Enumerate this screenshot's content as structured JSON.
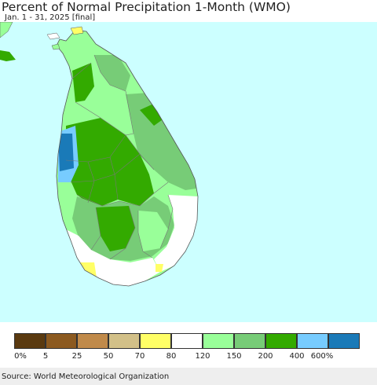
{
  "header": {
    "title": "Percent of Normal Precipitation 1-Month (WMO)",
    "subtitle": "Jan. 1 - 31, 2025 [final]"
  },
  "map": {
    "ocean_color": "#ccffff",
    "region": "Sri Lanka",
    "category_colors": {
      "0-5": "#5a3a10",
      "5-25": "#8c5a20",
      "25-50": "#c08a4a",
      "50-70": "#d2c088",
      "70-80": "#ffff66",
      "80-120": "#ffffff",
      "120-150": "#99ff99",
      "150-200": "#77cc77",
      "200-400": "#33aa00",
      "400-600": "#77ccff",
      "600+": "#1a7ab8"
    }
  },
  "legend": {
    "colors": [
      "#5a3a10",
      "#8c5a20",
      "#c08a4a",
      "#d2c088",
      "#ffff66",
      "#ffffff",
      "#99ff99",
      "#77cc77",
      "#33aa00",
      "#77ccff",
      "#1a7ab8"
    ],
    "labels": [
      "0%",
      "5",
      "25",
      "50",
      "70",
      "80",
      "120",
      "150",
      "200",
      "400",
      "600%"
    ]
  },
  "footer": {
    "source": "Source: World Meteorological Organization"
  }
}
